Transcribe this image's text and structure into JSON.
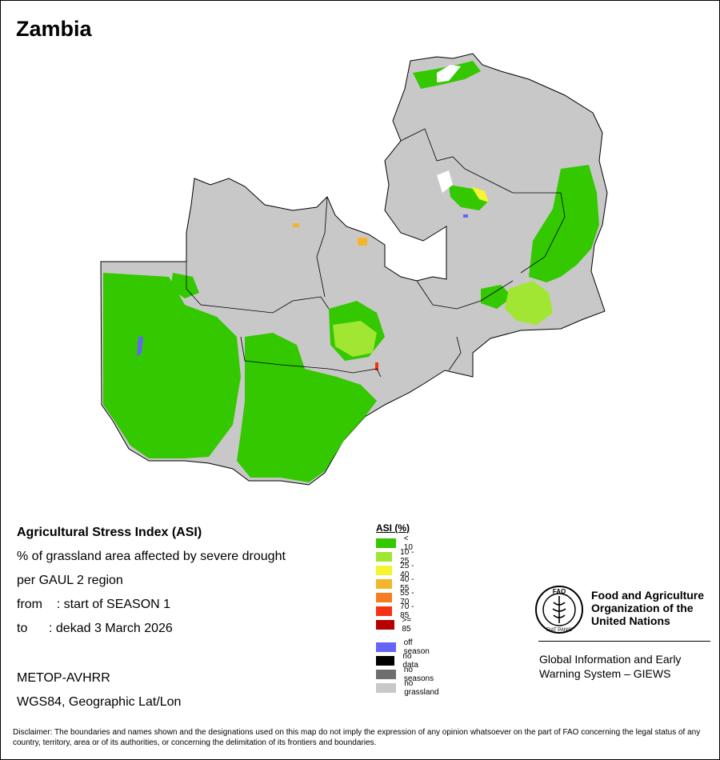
{
  "map_title": "Zambia",
  "info": {
    "asi_title": "Agricultural Stress Index (ASI)",
    "line1": "% of grassland area affected by severe drought",
    "line2": "per GAUL 2 region",
    "line3": "from    : start of SEASON 1",
    "line4": "to      : dekad 3 March 2026",
    "sensor": "METOP-AVHRR",
    "projection": "WGS84, Geographic Lat/Lon"
  },
  "legend": {
    "title": "ASI (%)",
    "classes": [
      {
        "label": "< 10",
        "color": "#33c800"
      },
      {
        "label": "10 - 25",
        "color": "#a0e632"
      },
      {
        "label": "25 - 40",
        "color": "#f5f532"
      },
      {
        "label": "40 - 55",
        "color": "#f5b42d"
      },
      {
        "label": "55 - 70",
        "color": "#f57d1e"
      },
      {
        "label": "70 - 85",
        "color": "#f53214"
      },
      {
        "label": ">= 85",
        "color": "#b40000"
      }
    ],
    "other": [
      {
        "label": "off season",
        "color": "#6464f5"
      },
      {
        "label": "no data",
        "color": "#000000"
      },
      {
        "label": "no seasons",
        "color": "#6e6e6e"
      },
      {
        "label": "no grassland",
        "color": "#c8c8c8"
      }
    ]
  },
  "fao": {
    "org_name": "Food and Agriculture\nOrganization of the\nUnited Nations",
    "logo_text": "FAO",
    "logo_motto": "FIAT PANIS",
    "system": "Global Information and Early\nWarning System – GIEWS"
  },
  "disclaimer": "Disclaimer: The boundaries and names shown and the designations used on this map do not imply the expression of any opinion whatsoever on the part of FAO concerning the legal status of any country, territory, area or of its authorities, or concerning the delimitation of its frontiers and boundaries.",
  "colors": {
    "country_fill": "#c8c8c8",
    "low_stress": "#33c800",
    "moderate_stress": "#a0e632",
    "boundary": "#000000"
  }
}
